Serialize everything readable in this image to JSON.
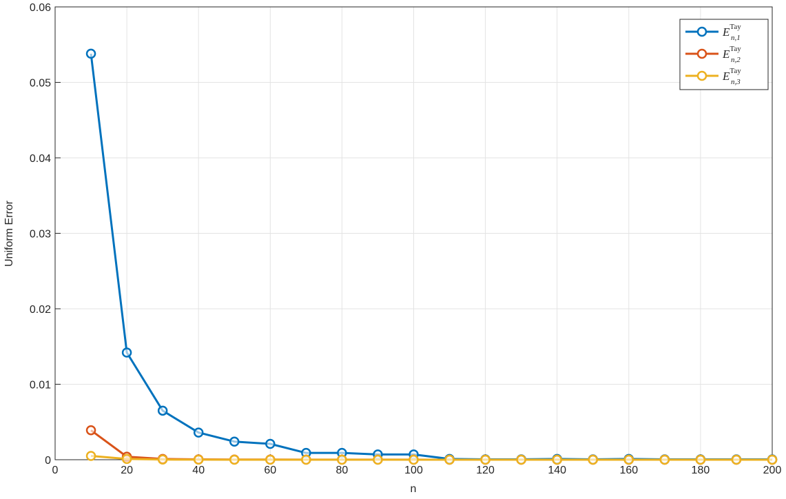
{
  "chart_data": {
    "type": "line",
    "x_label": "n",
    "y_label": "Uniform Error",
    "x": [
      10,
      20,
      30,
      40,
      50,
      60,
      70,
      80,
      90,
      100,
      110,
      120,
      130,
      140,
      150,
      160,
      170,
      180,
      190,
      200
    ],
    "series": [
      {
        "name": "E",
        "superscript": "Tay",
        "subscript": "n,1",
        "color": "#0072BD",
        "values": [
          0.0538,
          0.0142,
          0.0065,
          0.0036,
          0.0024,
          0.0021,
          0.0009,
          0.0009,
          0.0007,
          0.0007,
          0.0001,
          5e-05,
          5e-05,
          0.0001,
          5e-05,
          0.0001,
          5e-05,
          5e-05,
          5e-05,
          5e-05
        ]
      },
      {
        "name": "E",
        "superscript": "Tay",
        "subscript": "n,2",
        "color": "#D95319",
        "values": [
          0.0039,
          0.0004,
          0.0001,
          5e-05,
          2e-05,
          2e-05,
          1e-05,
          1e-05,
          1e-05,
          1e-05,
          0,
          0,
          0,
          0,
          0,
          0,
          0,
          0,
          0,
          0
        ]
      },
      {
        "name": "E",
        "superscript": "Tay",
        "subscript": "n,3",
        "color": "#EDB120",
        "values": [
          0.0005,
          0.0001,
          2e-05,
          1e-05,
          0,
          0,
          0,
          0,
          0,
          0,
          0,
          0,
          0,
          0,
          0,
          0,
          0,
          0,
          0,
          0
        ]
      }
    ],
    "xlim": [
      0,
      200
    ],
    "xticks": [
      0,
      20,
      40,
      60,
      80,
      100,
      120,
      140,
      160,
      180,
      200
    ],
    "ylim": [
      0,
      0.06
    ],
    "yticks": [
      0,
      0.01,
      0.02,
      0.03,
      0.04,
      0.05,
      0.06
    ],
    "grid": true,
    "legend": "top-right"
  }
}
